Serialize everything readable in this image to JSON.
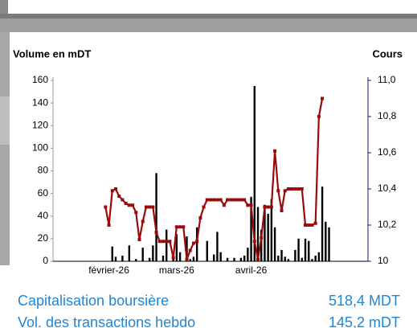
{
  "chart_data": {
    "type": "combo",
    "y_label": "Volume en mDT",
    "y2_label": "Cours",
    "categories": [
      null,
      null,
      null,
      null,
      null,
      null,
      null,
      null,
      null,
      null,
      null,
      null,
      null,
      null,
      null,
      null,
      "février-26",
      null,
      null,
      null,
      null,
      null,
      null,
      null,
      null,
      null,
      null,
      null,
      null,
      null,
      null,
      null,
      null,
      null,
      null,
      null,
      "mars-26",
      null,
      null,
      null,
      null,
      null,
      null,
      null,
      null,
      null,
      null,
      null,
      null,
      null,
      null,
      null,
      null,
      null,
      null,
      null,
      null,
      null,
      "avril-26",
      null,
      null,
      null,
      null,
      null,
      null,
      null,
      null,
      null,
      null,
      null,
      null,
      null,
      null,
      null,
      null,
      null,
      null,
      null,
      null,
      null,
      null,
      null,
      null,
      null,
      null,
      null,
      null,
      null,
      null,
      null,
      null,
      null,
      null
    ],
    "series": [
      {
        "type": "bar",
        "color": "#000000",
        "values": [
          null,
          null,
          null,
          null,
          null,
          null,
          null,
          null,
          null,
          null,
          null,
          null,
          null,
          null,
          null,
          null,
          null,
          13,
          4,
          null,
          5,
          null,
          14,
          null,
          2,
          null,
          12,
          null,
          3,
          14,
          78,
          null,
          5,
          28,
          null,
          3,
          24,
          8,
          null,
          22,
          2,
          4,
          30,
          null,
          null,
          18,
          null,
          6,
          26,
          8,
          null,
          3,
          null,
          3,
          null,
          3,
          5,
          12,
          57,
          155,
          48,
          28,
          50,
          42,
          55,
          30,
          5,
          10,
          4,
          2,
          null,
          10,
          20,
          3,
          20,
          18,
          2,
          5,
          8,
          66,
          35,
          30,
          null,
          null,
          null,
          null,
          null,
          null,
          null,
          null,
          null,
          null,
          null
        ]
      },
      {
        "type": "line",
        "axis": "y2",
        "color": "#9b0a0a",
        "values": [
          null,
          null,
          null,
          null,
          null,
          null,
          null,
          null,
          null,
          null,
          null,
          null,
          null,
          null,
          null,
          10.3,
          10.2,
          10.39,
          10.4,
          10.36,
          10.34,
          10.32,
          10.31,
          10.31,
          10.27,
          10.12,
          10.22,
          10.3,
          10.3,
          10.3,
          10.16,
          10.11,
          10.11,
          10.11,
          10.11,
          10.02,
          10.19,
          10.19,
          10.19,
          10.01,
          10.06,
          10.1,
          10.11,
          10.24,
          10.3,
          10.34,
          10.34,
          10.34,
          10.34,
          10.34,
          10.31,
          10.34,
          10.34,
          10.34,
          10.34,
          10.34,
          10.34,
          10.31,
          10.31,
          10.11,
          10.01,
          10.13,
          10.3,
          10.3,
          10.3,
          10.61,
          10.39,
          10.28,
          10.39,
          10.4,
          10.4,
          10.4,
          10.4,
          10.4,
          10.2,
          10.2,
          10.2,
          10.21,
          10.8,
          10.9,
          null,
          null,
          null,
          null,
          null,
          null,
          null,
          null,
          null,
          null,
          null,
          null,
          null
        ]
      }
    ],
    "ylim": [
      0,
      160
    ],
    "yticks": [
      0,
      20,
      40,
      60,
      80,
      100,
      120,
      140,
      160
    ],
    "y2lim": [
      10,
      11
    ],
    "y2ticks": [
      10,
      {
        "value": 10.2,
        "label": "10,2"
      },
      {
        "value": 10.4,
        "label": "10,4"
      },
      {
        "value": 10.6,
        "label": "10,6"
      },
      {
        "value": 10.8,
        "label": "10,8"
      },
      {
        "value": 11,
        "label": "11,0"
      }
    ],
    "y2_axis_color": "#1a1a6e"
  },
  "stats": [
    {
      "label": "Capitalisation boursière",
      "value": "518,4 MDT"
    },
    {
      "label": "Vol. des transactions hebdo",
      "value": "145,2 mDT"
    }
  ]
}
